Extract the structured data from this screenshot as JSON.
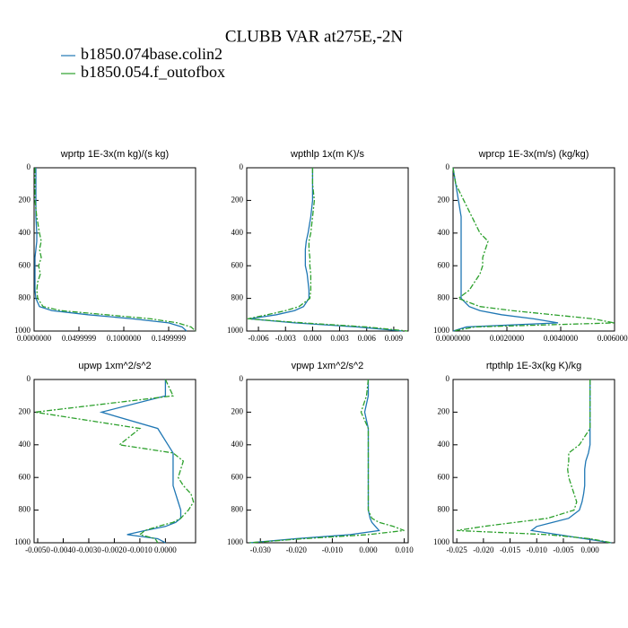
{
  "title": "CLUBB VAR at275E,-2N",
  "legend": [
    {
      "name": "b1850.074base.colin2",
      "color": "#1f77b4"
    },
    {
      "name": "b1850.054.f_outofbox",
      "color": "#2ca02c"
    }
  ],
  "chart_data": [
    {
      "type": "line",
      "title": "wprtp  1E-3x(m kg)/(s kg)",
      "y": [
        0,
        100,
        200,
        300,
        400,
        450,
        500,
        550,
        600,
        650,
        700,
        750,
        800,
        850,
        875,
        900,
        925,
        950,
        975,
        1000
      ],
      "ylim": [
        1000,
        0
      ],
      "yticks": [
        0,
        200,
        400,
        600,
        800,
        1000
      ],
      "xlim": [
        0,
        0.18
      ],
      "xticks": [
        {
          "value": 0,
          "label": "0.0000000"
        },
        {
          "value": 0.05,
          "label": "0.0499999"
        },
        {
          "value": 0.1,
          "label": "0.1000000"
        },
        {
          "value": 0.15,
          "label": "0.1499999"
        }
      ],
      "series": [
        {
          "color": "#1f77b4",
          "values": [
            0.002,
            0.002,
            0.002,
            0.002,
            0.003,
            0.003,
            0.002,
            0.001,
            0.001,
            0.001,
            0.001,
            0.001,
            0.002,
            0.006,
            0.02,
            0.06,
            0.11,
            0.15,
            0.165,
            0.17
          ]
        },
        {
          "color": "#2ca02c",
          "values": [
            0.001,
            0.001,
            0.001,
            0.003,
            0.006,
            0.008,
            0.006,
            0.008,
            0.005,
            0.007,
            0.004,
            0.003,
            0.004,
            0.01,
            0.03,
            0.08,
            0.13,
            0.16,
            0.175,
            0.18
          ]
        }
      ]
    },
    {
      "type": "line",
      "title": "wpthlp  1x(m K)/s",
      "y": [
        0,
        100,
        200,
        300,
        400,
        450,
        500,
        550,
        600,
        650,
        700,
        750,
        800,
        850,
        875,
        900,
        925,
        950,
        975,
        1000
      ],
      "ylim": [
        1000,
        0
      ],
      "yticks": [
        0,
        200,
        400,
        600,
        800,
        1000
      ],
      "xlim": [
        -0.0073,
        0.0106
      ],
      "xticks": [
        -0.006,
        -0.003,
        {
          "value": 0,
          "label": "0.000"
        },
        0.003,
        0.006,
        0.009
      ],
      "series": [
        {
          "color": "#1f77b4",
          "values": [
            0,
            0,
            0,
            -0.0002,
            -0.0005,
            -0.0007,
            -0.0008,
            -0.0008,
            -0.0008,
            -0.0006,
            -0.0005,
            -0.0004,
            -0.0004,
            -0.001,
            -0.002,
            -0.004,
            -0.007,
            -0.002,
            0.005,
            0.01
          ]
        },
        {
          "color": "#2ca02c",
          "values": [
            0,
            0,
            0.0002,
            0,
            -0.0002,
            -0.0004,
            -0.0004,
            -0.0003,
            -0.0003,
            -0.0002,
            -0.0002,
            -0.0002,
            -0.0003,
            -0.0015,
            -0.003,
            -0.005,
            -0.0072,
            -0.001,
            0.006,
            0.0105
          ]
        }
      ]
    },
    {
      "type": "line",
      "title": "wprcp  1E-3x(m/s) (kg/kg)",
      "y": [
        0,
        100,
        200,
        300,
        400,
        450,
        500,
        550,
        600,
        650,
        700,
        750,
        800,
        850,
        875,
        900,
        925,
        950,
        975,
        1000
      ],
      "ylim": [
        1000,
        0
      ],
      "yticks": [
        0,
        200,
        400,
        600,
        800,
        1000
      ],
      "xlim": [
        0,
        0.006
      ],
      "xticks": [
        {
          "value": 0,
          "label": "0.0000000"
        },
        {
          "value": 0.002,
          "label": "0.0020000"
        },
        {
          "value": 0.004,
          "label": "0.0040000"
        },
        {
          "value": 0.006,
          "label": "0.0060000"
        }
      ],
      "series": [
        {
          "color": "#1f77b4",
          "values": [
            0,
            0.0001,
            0.0002,
            0.0003,
            0.0003,
            0.0003,
            0.0003,
            0.0003,
            0.0003,
            0.0003,
            0.0003,
            0.0003,
            0.0003,
            0.0006,
            0.001,
            0.0018,
            0.003,
            0.0039,
            0.0005,
            0
          ]
        },
        {
          "color": "#2ca02c",
          "values": [
            0,
            0.0001,
            0.0004,
            0.0007,
            0.001,
            0.0013,
            0.0012,
            0.0011,
            0.0011,
            0.001,
            0.0008,
            0.0006,
            0.0002,
            0.001,
            0.0022,
            0.0037,
            0.0052,
            0.006,
            0.0008,
            0
          ]
        }
      ]
    },
    {
      "type": "line",
      "title": "upwp  1xm^2/s^2",
      "y": [
        0,
        100,
        200,
        300,
        400,
        450,
        500,
        550,
        600,
        650,
        700,
        750,
        800,
        850,
        875,
        900,
        925,
        950,
        975,
        1000
      ],
      "ylim": [
        1000,
        0
      ],
      "yticks": [
        0,
        200,
        400,
        600,
        800,
        1000
      ],
      "xlim": [
        -0.00514,
        0.00118
      ],
      "xticks": [
        {
          "value": -0.005,
          "label": "-0.0050"
        },
        {
          "value": -0.004,
          "label": "-0.0040"
        },
        {
          "value": -0.003,
          "label": "-0.0030"
        },
        {
          "value": -0.002,
          "label": "-0.0020"
        },
        {
          "value": -0.001,
          "label": "-0.0010"
        },
        {
          "value": 0,
          "label": "0.0000"
        }
      ],
      "series": [
        {
          "color": "#1f77b4",
          "values": [
            0,
            0,
            -0.0025,
            -0.0003,
            0.0001,
            0.0003,
            0.0003,
            0.0003,
            0.0003,
            0.0003,
            0.0004,
            0.0005,
            0.0006,
            0.0006,
            0.0004,
            0,
            -0.0008,
            -0.0015,
            -0.0003,
            0
          ]
        },
        {
          "color": "#2ca02c",
          "values": [
            0,
            0.0003,
            -0.0051,
            -0.001,
            -0.0018,
            0.0003,
            0.0007,
            0.0006,
            0.0005,
            0.0007,
            0.001,
            0.0011,
            0.0009,
            0.0006,
            0.0003,
            -0.0003,
            -0.0008,
            -0.001,
            -0.0004,
            -0.0003
          ]
        }
      ]
    },
    {
      "type": "line",
      "title": "vpwp  1xm^2/s^2",
      "y": [
        0,
        100,
        200,
        300,
        400,
        450,
        500,
        550,
        600,
        650,
        700,
        750,
        800,
        850,
        875,
        900,
        925,
        950,
        975,
        1000
      ],
      "ylim": [
        1000,
        0
      ],
      "yticks": [
        0,
        200,
        400,
        600,
        800,
        1000
      ],
      "xlim": [
        -0.0338,
        0.0111
      ],
      "xticks": [
        {
          "value": -0.03,
          "label": "-0.030"
        },
        {
          "value": -0.02,
          "label": "-0.020"
        },
        {
          "value": -0.01,
          "label": "-0.010"
        },
        {
          "value": 0,
          "label": "0.000"
        },
        {
          "value": 0.01,
          "label": "0.010"
        }
      ],
      "series": [
        {
          "color": "#1f77b4",
          "values": [
            0,
            0,
            -0.001,
            0,
            0,
            0,
            0,
            0,
            0,
            0,
            0,
            0,
            0,
            0.0005,
            0.001,
            0.002,
            0.003,
            -0.005,
            -0.02,
            -0.033
          ]
        },
        {
          "color": "#2ca02c",
          "values": [
            0,
            -0.0005,
            -0.002,
            0,
            0,
            0,
            0,
            0,
            0,
            0,
            0,
            0,
            0,
            0.001,
            0.003,
            0.007,
            0.01,
            0,
            -0.018,
            -0.033
          ]
        }
      ]
    },
    {
      "type": "line",
      "title": "rtpthlp  1E-3x(kg K)/kg",
      "y": [
        0,
        100,
        200,
        300,
        400,
        450,
        500,
        550,
        600,
        650,
        700,
        750,
        800,
        850,
        875,
        900,
        925,
        950,
        975,
        1000
      ],
      "ylim": [
        1000,
        0
      ],
      "yticks": [
        0,
        200,
        400,
        600,
        800,
        1000
      ],
      "xlim": [
        -0.0257,
        0.0046
      ],
      "xticks": [
        {
          "value": -0.025,
          "label": "-0.025"
        },
        {
          "value": -0.02,
          "label": "-0.020"
        },
        {
          "value": -0.015,
          "label": "-0.015"
        },
        {
          "value": -0.01,
          "label": "-0.010"
        },
        {
          "value": -0.005,
          "label": "-0.005"
        },
        {
          "value": 0,
          "label": "0.000"
        }
      ],
      "series": [
        {
          "color": "#1f77b4",
          "values": [
            0,
            0,
            0,
            0,
            0,
            -0.0003,
            -0.0008,
            -0.001,
            -0.001,
            -0.001,
            -0.0012,
            -0.0015,
            -0.002,
            -0.004,
            -0.007,
            -0.01,
            -0.011,
            -0.006,
            -0.001,
            0.004
          ]
        },
        {
          "color": "#2ca02c",
          "values": [
            0,
            0,
            0,
            0,
            -0.002,
            -0.004,
            -0.004,
            -0.0042,
            -0.004,
            -0.0035,
            -0.003,
            -0.0025,
            -0.003,
            -0.008,
            -0.014,
            -0.02,
            -0.025,
            -0.008,
            0,
            0.004
          ]
        }
      ]
    }
  ]
}
